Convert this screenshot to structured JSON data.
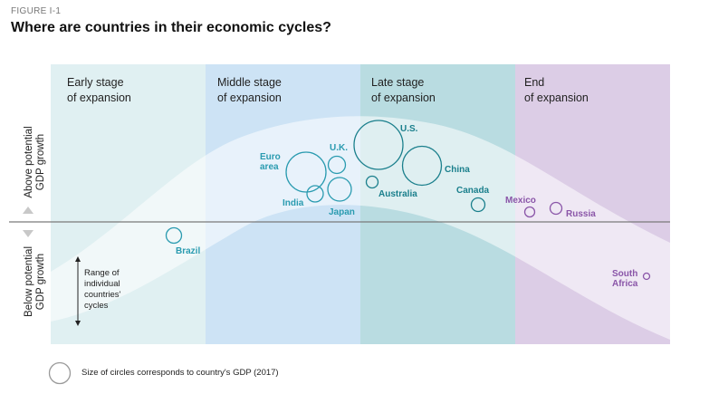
{
  "figure_label": "FIGURE I-1",
  "title": "Where are countries in their economic cycles?",
  "stages": [
    {
      "line1": "Early stage",
      "line2": "of expansion",
      "color": "#e0f0f2"
    },
    {
      "line1": "Middle stage",
      "line2": "of expansion",
      "color": "#cde3f5"
    },
    {
      "line1": "Late stage",
      "line2": "of expansion",
      "color": "#b9dce1"
    },
    {
      "line1": "End",
      "line2": "of expansion",
      "color": "#dccde6"
    }
  ],
  "y_axis": {
    "above_line1": "Above potential",
    "above_line2": "GDP growth",
    "below_line1": "Below potential",
    "below_line2": "GDP growth"
  },
  "countries": [
    {
      "name": "Brazil",
      "color": "#2a9bb0"
    },
    {
      "line1": "Euro",
      "line2": "area",
      "color": "#2a9bb0"
    },
    {
      "name": "India",
      "color": "#2a9bb0"
    },
    {
      "name": "U.K.",
      "color": "#2a9bb0"
    },
    {
      "name": "Japan",
      "color": "#2a9bb0"
    },
    {
      "name": "U.S.",
      "color": "#1a7f8c"
    },
    {
      "name": "Australia",
      "color": "#1a7f8c"
    },
    {
      "name": "China",
      "color": "#1a7f8c"
    },
    {
      "name": "Canada",
      "color": "#1a7f8c"
    },
    {
      "name": "Mexico",
      "color": "#8a55a8"
    },
    {
      "name": "Russia",
      "color": "#8a55a8"
    },
    {
      "line1": "South",
      "line2": "Africa",
      "color": "#8a55a8"
    }
  ],
  "range_note": {
    "line1": "Range of",
    "line2": "individual",
    "line3": "countries'",
    "line4": "cycles"
  },
  "legend": {
    "text": "Size of circles corresponds to country's GDP (2017)"
  }
}
